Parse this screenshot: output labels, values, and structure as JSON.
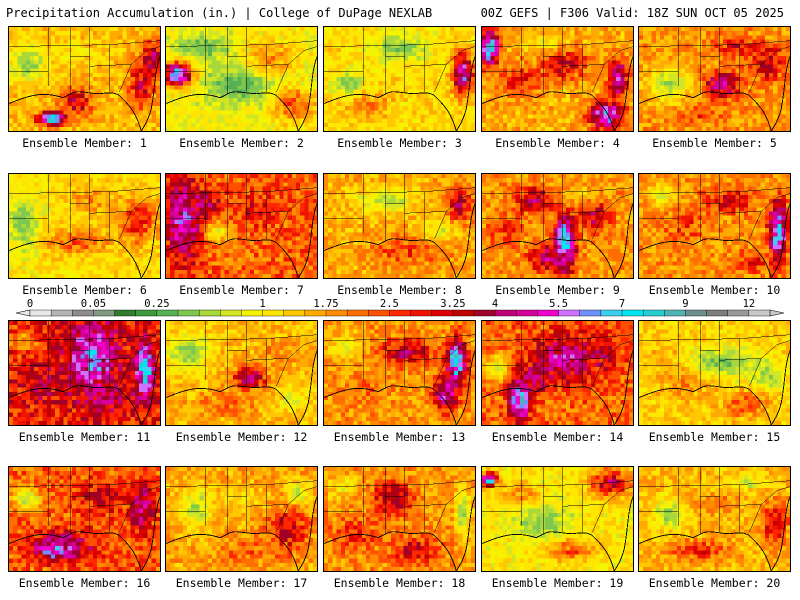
{
  "header": {
    "left": "Precipitation Accumulation (in.) | College of DuPage NEXLAB",
    "right": "00Z GEFS | F306 Valid: 18Z SUN OCT 05 2025"
  },
  "label_prefix": "Ensemble Member: ",
  "members": [
    {
      "id": 1,
      "label": "Ensemble Member: 1",
      "base": 1.5,
      "blobs": [
        [
          0.45,
          0.72,
          0.1,
          0.12,
          3.5
        ],
        [
          0.28,
          0.88,
          0.08,
          0.06,
          7
        ],
        [
          0.88,
          0.55,
          0.08,
          0.2,
          3.5
        ],
        [
          0.95,
          0.3,
          0.06,
          0.15,
          4
        ],
        [
          0.4,
          0.25,
          0.2,
          0.12,
          1.1
        ],
        [
          0.12,
          0.35,
          0.12,
          0.2,
          0.5
        ]
      ]
    },
    {
      "id": 2,
      "label": "Ensemble Member: 2",
      "base": 1.0,
      "blobs": [
        [
          0.5,
          0.55,
          0.25,
          0.18,
          0.3
        ],
        [
          0.08,
          0.45,
          0.08,
          0.1,
          7
        ],
        [
          0.7,
          0.3,
          0.15,
          0.15,
          1.9
        ],
        [
          0.85,
          0.75,
          0.12,
          0.15,
          2.5
        ],
        [
          0.25,
          0.2,
          0.18,
          0.14,
          0.4
        ]
      ]
    },
    {
      "id": 3,
      "label": "Ensemble Member: 3",
      "base": 1.2,
      "blobs": [
        [
          0.92,
          0.45,
          0.06,
          0.18,
          5.5
        ],
        [
          0.5,
          0.2,
          0.2,
          0.14,
          0.5
        ],
        [
          0.3,
          0.75,
          0.15,
          0.12,
          2.0
        ],
        [
          0.7,
          0.78,
          0.12,
          0.12,
          1.3
        ],
        [
          0.15,
          0.55,
          0.1,
          0.12,
          0.5
        ]
      ]
    },
    {
      "id": 4,
      "label": "Ensemble Member: 4",
      "base": 1.6,
      "blobs": [
        [
          0.82,
          0.85,
          0.1,
          0.12,
          6
        ],
        [
          0.9,
          0.5,
          0.06,
          0.18,
          5
        ],
        [
          0.05,
          0.2,
          0.06,
          0.15,
          7
        ],
        [
          0.55,
          0.35,
          0.15,
          0.15,
          3.3
        ],
        [
          0.25,
          0.5,
          0.15,
          0.15,
          2.8
        ],
        [
          0.4,
          0.15,
          0.15,
          0.08,
          1.0
        ]
      ]
    },
    {
      "id": 5,
      "label": "Ensemble Member: 5",
      "base": 1.8,
      "blobs": [
        [
          0.55,
          0.55,
          0.1,
          0.12,
          4.5
        ],
        [
          0.85,
          0.35,
          0.1,
          0.15,
          3.5
        ],
        [
          0.2,
          0.55,
          0.15,
          0.18,
          0.6
        ],
        [
          0.65,
          0.2,
          0.15,
          0.1,
          3.0
        ],
        [
          0.4,
          0.85,
          0.15,
          0.1,
          2.5
        ]
      ]
    },
    {
      "id": 6,
      "label": "Ensemble Member: 6",
      "base": 1.2,
      "blobs": [
        [
          0.1,
          0.5,
          0.12,
          0.3,
          0.5
        ],
        [
          0.45,
          0.65,
          0.2,
          0.12,
          2.3
        ],
        [
          0.85,
          0.45,
          0.12,
          0.2,
          3.0
        ],
        [
          0.55,
          0.25,
          0.15,
          0.12,
          1.9
        ],
        [
          0.5,
          0.9,
          0.25,
          0.08,
          1.2
        ]
      ]
    },
    {
      "id": 7,
      "label": "Ensemble Member: 7",
      "base": 2.3,
      "blobs": [
        [
          0.12,
          0.45,
          0.1,
          0.35,
          5.5
        ],
        [
          0.25,
          0.3,
          0.12,
          0.12,
          3.8
        ],
        [
          0.6,
          0.35,
          0.12,
          0.15,
          3.0
        ],
        [
          0.8,
          0.7,
          0.15,
          0.15,
          2.4
        ],
        [
          0.45,
          0.8,
          0.15,
          0.1,
          2.0
        ],
        [
          0.35,
          0.55,
          0.1,
          0.1,
          1.0
        ]
      ]
    },
    {
      "id": 8,
      "label": "Ensemble Member: 8",
      "base": 1.6,
      "blobs": [
        [
          0.9,
          0.3,
          0.08,
          0.15,
          3.5
        ],
        [
          0.4,
          0.25,
          0.2,
          0.12,
          0.6
        ],
        [
          0.55,
          0.75,
          0.25,
          0.15,
          2.5
        ],
        [
          0.15,
          0.6,
          0.12,
          0.15,
          1.5
        ],
        [
          0.75,
          0.55,
          0.1,
          0.12,
          0.8
        ]
      ]
    },
    {
      "id": 9,
      "label": "Ensemble Member: 9",
      "base": 1.8,
      "blobs": [
        [
          0.55,
          0.65,
          0.06,
          0.25,
          7
        ],
        [
          0.45,
          0.8,
          0.12,
          0.12,
          4.5
        ],
        [
          0.35,
          0.25,
          0.12,
          0.12,
          4.0
        ],
        [
          0.15,
          0.55,
          0.1,
          0.15,
          2.7
        ],
        [
          0.75,
          0.4,
          0.1,
          0.15,
          3.5
        ],
        [
          0.65,
          0.2,
          0.15,
          0.1,
          1.4
        ]
      ]
    },
    {
      "id": 10,
      "label": "Ensemble Member: 10",
      "base": 1.8,
      "blobs": [
        [
          0.92,
          0.55,
          0.05,
          0.25,
          7
        ],
        [
          0.6,
          0.25,
          0.15,
          0.12,
          3.2
        ],
        [
          0.3,
          0.5,
          0.15,
          0.15,
          2.5
        ],
        [
          0.75,
          0.85,
          0.12,
          0.1,
          2.8
        ],
        [
          0.15,
          0.2,
          0.1,
          0.1,
          0.8
        ]
      ]
    },
    {
      "id": 11,
      "label": "Ensemble Member: 11",
      "base": 2.8,
      "blobs": [
        [
          0.55,
          0.35,
          0.15,
          0.3,
          6
        ],
        [
          0.9,
          0.45,
          0.06,
          0.25,
          7
        ],
        [
          0.25,
          0.6,
          0.15,
          0.2,
          3.5
        ],
        [
          0.65,
          0.75,
          0.15,
          0.15,
          4.0
        ],
        [
          0.1,
          0.2,
          0.1,
          0.1,
          1.6
        ]
      ]
    },
    {
      "id": 12,
      "label": "Ensemble Member: 12",
      "base": 1.5,
      "blobs": [
        [
          0.55,
          0.55,
          0.1,
          0.1,
          4.5
        ],
        [
          0.15,
          0.3,
          0.15,
          0.2,
          0.5
        ],
        [
          0.75,
          0.3,
          0.15,
          0.15,
          1.9
        ],
        [
          0.4,
          0.8,
          0.2,
          0.12,
          2.2
        ],
        [
          0.85,
          0.75,
          0.1,
          0.12,
          0.8
        ]
      ]
    },
    {
      "id": 13,
      "label": "Ensemble Member: 13",
      "base": 1.8,
      "blobs": [
        [
          0.88,
          0.4,
          0.06,
          0.2,
          7
        ],
        [
          0.8,
          0.7,
          0.08,
          0.15,
          5
        ],
        [
          0.55,
          0.3,
          0.15,
          0.12,
          3.8
        ],
        [
          0.3,
          0.65,
          0.15,
          0.15,
          2.2
        ],
        [
          0.15,
          0.25,
          0.1,
          0.12,
          0.8
        ]
      ]
    },
    {
      "id": 14,
      "label": "Ensemble Member: 14",
      "base": 2.2,
      "blobs": [
        [
          0.25,
          0.75,
          0.06,
          0.18,
          7
        ],
        [
          0.55,
          0.35,
          0.2,
          0.2,
          4.8
        ],
        [
          0.35,
          0.55,
          0.12,
          0.12,
          4.0
        ],
        [
          0.8,
          0.3,
          0.12,
          0.15,
          3.5
        ],
        [
          0.1,
          0.45,
          0.08,
          0.12,
          0.7
        ]
      ]
    },
    {
      "id": 15,
      "label": "Ensemble Member: 15",
      "base": 1.3,
      "blobs": [
        [
          0.55,
          0.4,
          0.25,
          0.15,
          0.4
        ],
        [
          0.85,
          0.55,
          0.12,
          0.15,
          0.6
        ],
        [
          0.3,
          0.6,
          0.15,
          0.15,
          1.9
        ],
        [
          0.7,
          0.8,
          0.15,
          0.12,
          2.4
        ],
        [
          0.15,
          0.3,
          0.12,
          0.12,
          1.5
        ]
      ]
    },
    {
      "id": 16,
      "label": "Ensemble Member: 16",
      "base": 2.3,
      "blobs": [
        [
          0.32,
          0.8,
          0.1,
          0.08,
          7
        ],
        [
          0.35,
          0.75,
          0.18,
          0.12,
          5.0
        ],
        [
          0.88,
          0.4,
          0.07,
          0.2,
          4.8
        ],
        [
          0.6,
          0.3,
          0.15,
          0.15,
          3.2
        ],
        [
          0.12,
          0.3,
          0.1,
          0.12,
          0.6
        ]
      ]
    },
    {
      "id": 17,
      "label": "Ensemble Member: 17",
      "base": 1.7,
      "blobs": [
        [
          0.8,
          0.6,
          0.12,
          0.18,
          3.5
        ],
        [
          0.2,
          0.4,
          0.12,
          0.2,
          0.6
        ],
        [
          0.5,
          0.3,
          0.15,
          0.12,
          1.1
        ],
        [
          0.55,
          0.8,
          0.2,
          0.1,
          2.4
        ],
        [
          0.88,
          0.25,
          0.08,
          0.1,
          0.7
        ]
      ]
    },
    {
      "id": 18,
      "label": "Ensemble Member: 18",
      "base": 1.8,
      "blobs": [
        [
          0.45,
          0.3,
          0.12,
          0.15,
          3.8
        ],
        [
          0.92,
          0.45,
          0.05,
          0.25,
          0.5
        ],
        [
          0.2,
          0.65,
          0.15,
          0.15,
          2.8
        ],
        [
          0.6,
          0.8,
          0.15,
          0.12,
          3.3
        ],
        [
          0.12,
          0.2,
          0.1,
          0.1,
          1.0
        ]
      ]
    },
    {
      "id": 19,
      "label": "Ensemble Member: 19",
      "base": 1.1,
      "blobs": [
        [
          0.85,
          0.15,
          0.12,
          0.12,
          3.8
        ],
        [
          0.05,
          0.12,
          0.05,
          0.06,
          7
        ],
        [
          0.4,
          0.55,
          0.2,
          0.18,
          0.5
        ],
        [
          0.6,
          0.8,
          0.15,
          0.1,
          2.4
        ],
        [
          0.25,
          0.25,
          0.12,
          0.1,
          1.9
        ]
      ]
    },
    {
      "id": 20,
      "label": "Ensemble Member: 20",
      "base": 1.5,
      "blobs": [
        [
          0.9,
          0.55,
          0.08,
          0.2,
          3.3
        ],
        [
          0.2,
          0.45,
          0.12,
          0.15,
          0.5
        ],
        [
          0.5,
          0.35,
          0.15,
          0.12,
          2.0
        ],
        [
          0.4,
          0.8,
          0.2,
          0.1,
          2.7
        ],
        [
          0.7,
          0.15,
          0.15,
          0.08,
          0.8
        ]
      ]
    }
  ],
  "colorbar": {
    "min": 0,
    "max": 12.5,
    "tick_labels": [
      "0",
      "0.05",
      "0.25",
      "1",
      "1.75",
      "2.5",
      "3.25",
      "4",
      "5.5",
      "7",
      "9",
      "12"
    ],
    "tick_values": [
      0,
      0.05,
      0.25,
      1,
      1.75,
      2.5,
      3.25,
      4,
      5.5,
      7,
      9,
      12
    ],
    "bins": [
      [
        0.0,
        "#e6e6e6"
      ],
      [
        0.01,
        "#b4b4b4"
      ],
      [
        0.03,
        "#8c8c8c"
      ],
      [
        0.05,
        "#7f9a7f"
      ],
      [
        0.1,
        "#2e7d2e"
      ],
      [
        0.18,
        "#3c9a3c"
      ],
      [
        0.25,
        "#56b054"
      ],
      [
        0.4,
        "#7ec850"
      ],
      [
        0.55,
        "#a8d83a"
      ],
      [
        0.7,
        "#d2e626"
      ],
      [
        0.85,
        "#f4f400"
      ],
      [
        1.0,
        "#ffe600"
      ],
      [
        1.25,
        "#ffc800"
      ],
      [
        1.5,
        "#ffaa00"
      ],
      [
        1.75,
        "#ff8c00"
      ],
      [
        2.0,
        "#ff6e00"
      ],
      [
        2.25,
        "#ff5000"
      ],
      [
        2.5,
        "#ff2800"
      ],
      [
        2.75,
        "#f01400"
      ],
      [
        3.0,
        "#dc0000"
      ],
      [
        3.25,
        "#be0000"
      ],
      [
        3.5,
        "#a00028"
      ],
      [
        4.0,
        "#c0007a"
      ],
      [
        4.5,
        "#d8009c"
      ],
      [
        5.0,
        "#f000c8"
      ],
      [
        5.5,
        "#d070ff"
      ],
      [
        6.0,
        "#6e90ff"
      ],
      [
        6.5,
        "#3ccff0"
      ],
      [
        7.0,
        "#00e6f0"
      ],
      [
        7.5,
        "#26cfcf"
      ],
      [
        8.0,
        "#4fb3b3"
      ],
      [
        9.0,
        "#6f8f8f"
      ],
      [
        10.0,
        "#7d7d7d"
      ],
      [
        11.0,
        "#9a9a9a"
      ],
      [
        12.0,
        "#c8c8c8"
      ]
    ]
  }
}
